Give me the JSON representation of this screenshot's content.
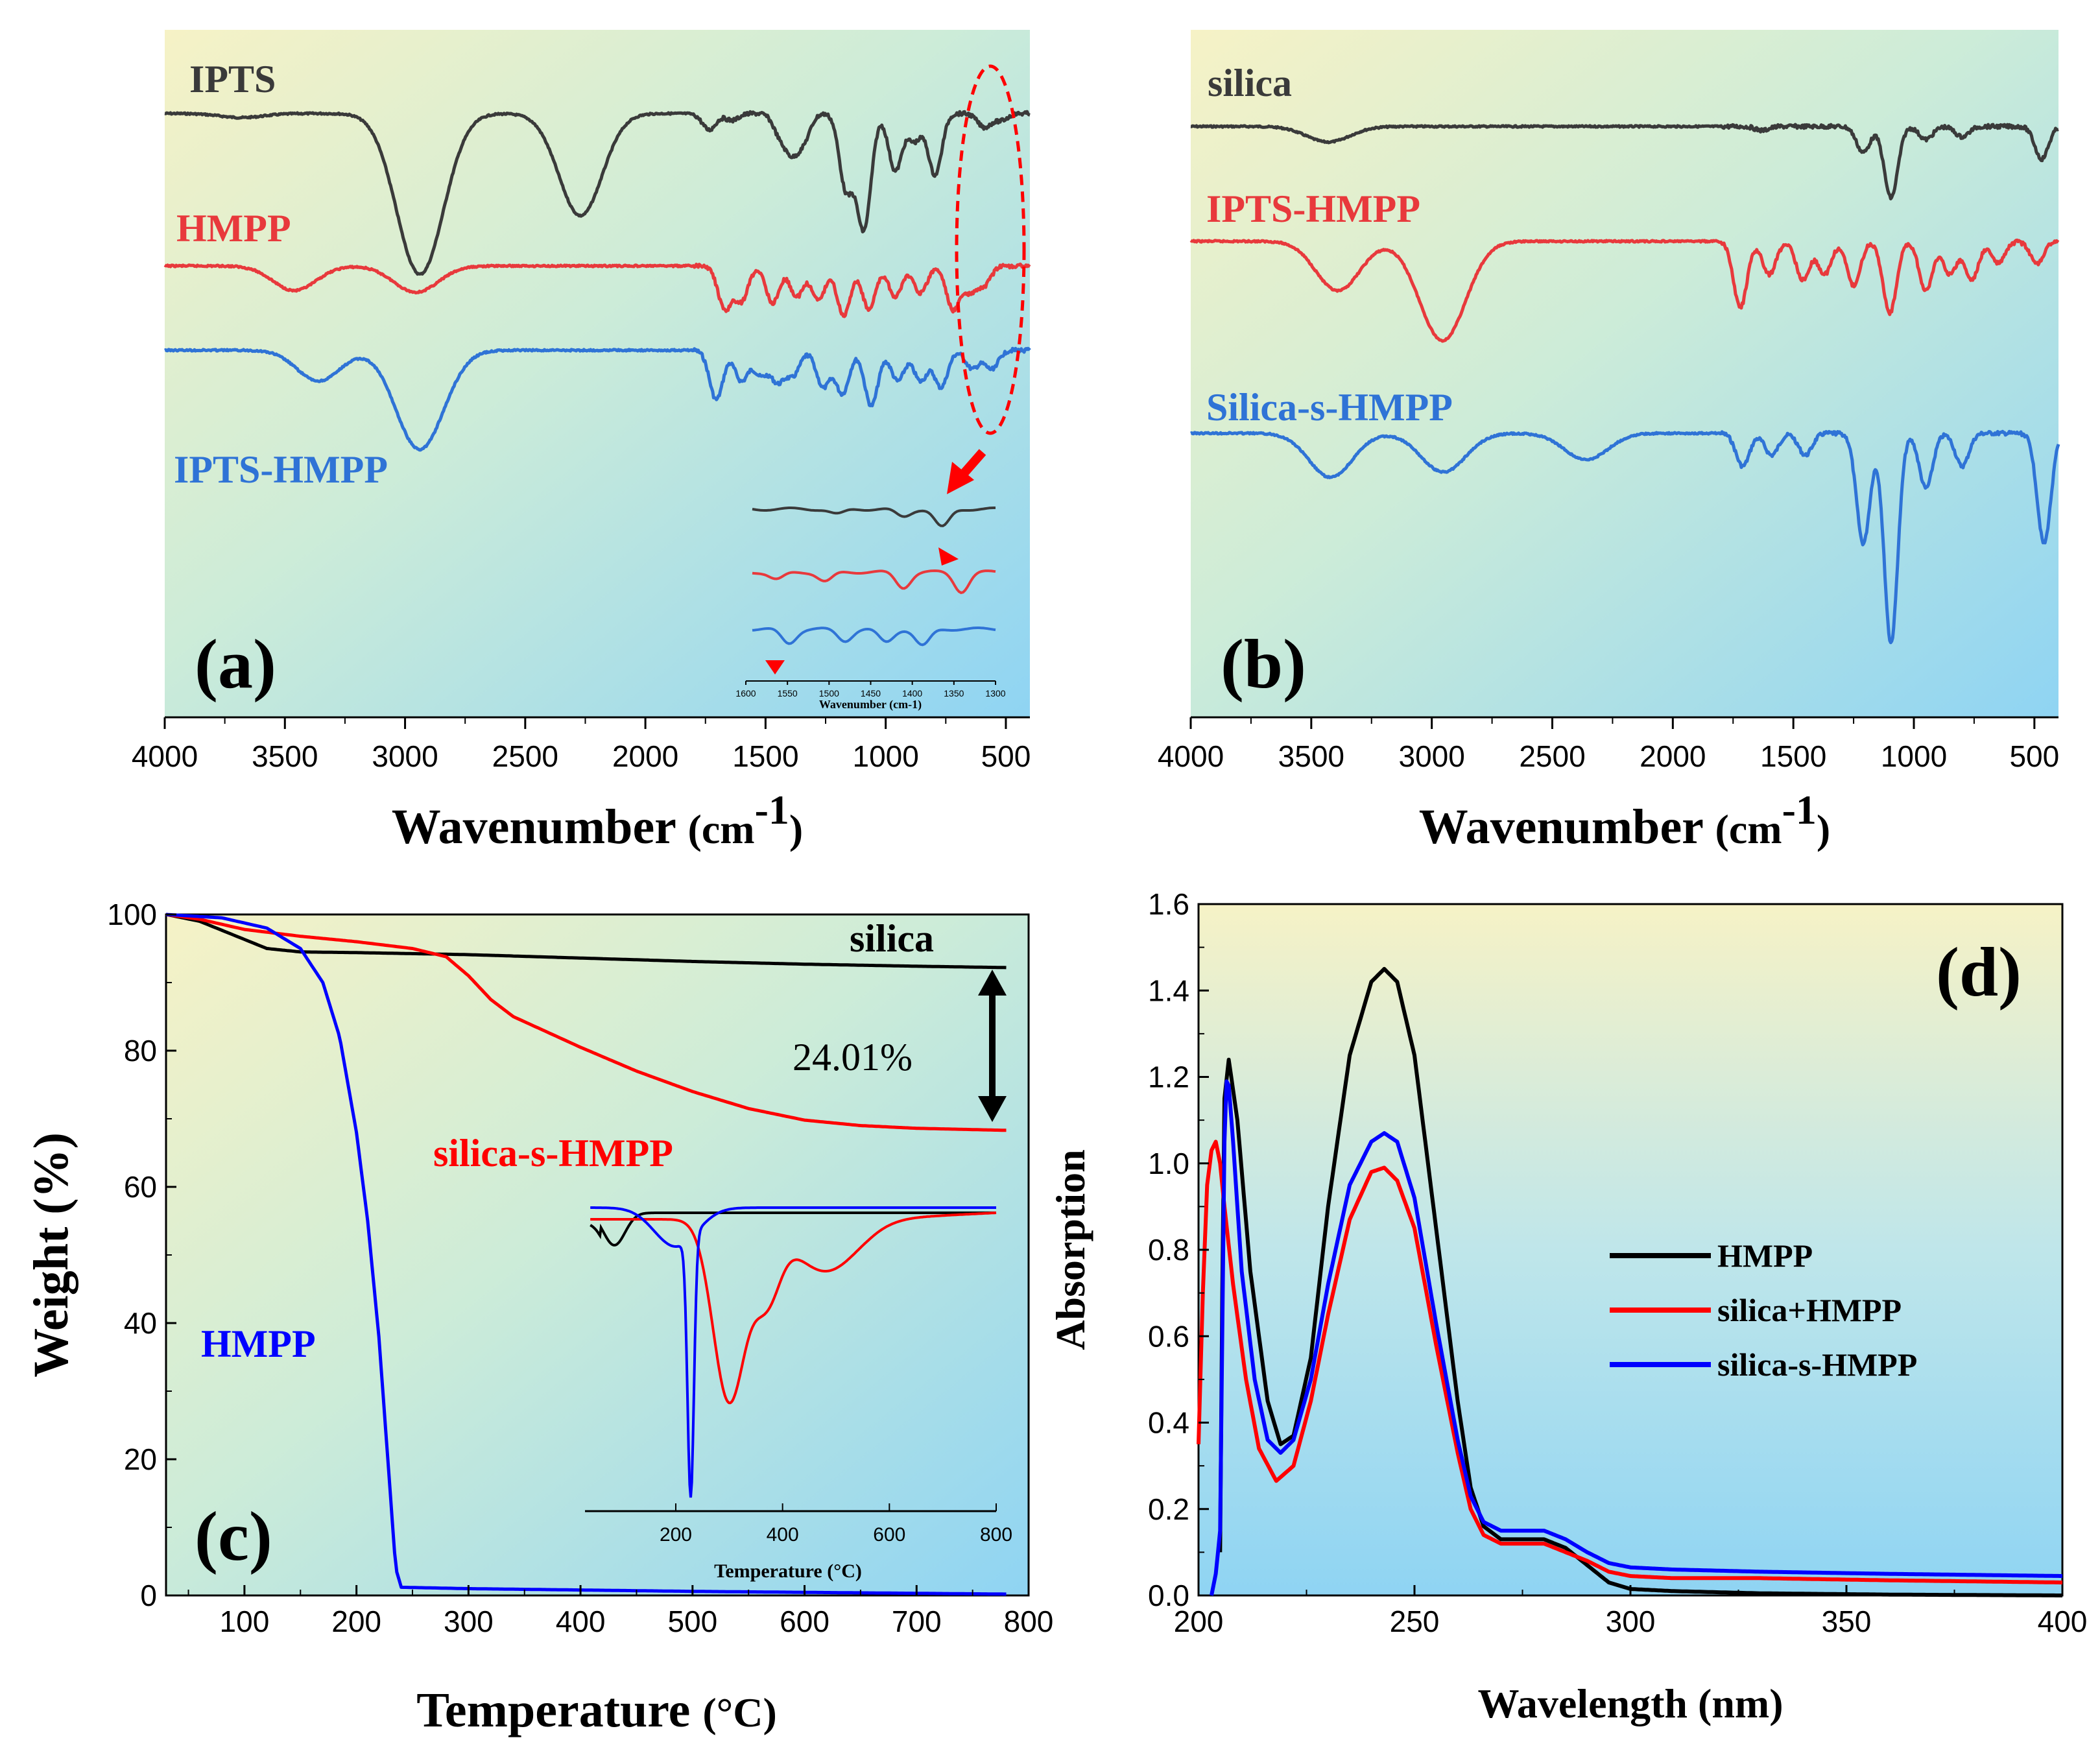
{
  "colors": {
    "black": "#3a3a3a",
    "red": "#e8393c",
    "blue": "#2f73d6",
    "pure_black": "#000000",
    "pure_red": "#ff0000",
    "pure_blue": "#0000ff"
  },
  "chart_data": [
    {
      "id": "a",
      "type": "line",
      "panel_label": "(a)",
      "xlabel": "Wavenumber",
      "xlabel_unit": "(cm",
      "xlabel_sup": "-1",
      "xlabel_close": ")",
      "xlim": [
        4000,
        400
      ],
      "xticks": [
        "4000",
        "3500",
        "3000",
        "2500",
        "2000",
        "1500",
        "1000",
        "500"
      ],
      "xtick_values": [
        4000,
        3500,
        3000,
        2500,
        2000,
        1500,
        1000,
        500
      ],
      "series": [
        {
          "name": "IPTS",
          "color": "black",
          "offset": 0,
          "peaks": [
            [
              3680,
              3
            ],
            [
              2975,
              52
            ],
            [
              2930,
              40
            ],
            [
              2890,
              35
            ],
            [
              2270,
              75
            ],
            [
              1735,
              12
            ],
            [
              1640,
              5
            ],
            [
              1440,
              15
            ],
            [
              1390,
              25
            ],
            [
              1340,
              18
            ],
            [
              1165,
              55
            ],
            [
              1100,
              50
            ],
            [
              1080,
              40
            ],
            [
              960,
              42
            ],
            [
              880,
              20
            ],
            [
              795,
              45
            ],
            [
              590,
              10
            ],
            [
              520,
              5
            ]
          ]
        },
        {
          "name": "HMPP",
          "color": "red",
          "offset": 0,
          "peaks": [
            [
              3460,
              20
            ],
            [
              2975,
              12
            ],
            [
              2930,
              10
            ],
            [
              1670,
              35
            ],
            [
              1600,
              28
            ],
            [
              1470,
              30
            ],
            [
              1370,
              25
            ],
            [
              1280,
              28
            ],
            [
              1175,
              40
            ],
            [
              1070,
              35
            ],
            [
              960,
              25
            ],
            [
              855,
              22
            ],
            [
              720,
              35
            ],
            [
              650,
              20
            ],
            [
              590,
              15
            ]
          ]
        },
        {
          "name": "IPTS-HMPP",
          "color": "blue",
          "offset": 0,
          "peaks": [
            [
              3360,
              25
            ],
            [
              2975,
              35
            ],
            [
              2940,
              28
            ],
            [
              2880,
              25
            ],
            [
              1705,
              40
            ],
            [
              1600,
              25
            ],
            [
              1520,
              20
            ],
            [
              1450,
              25
            ],
            [
              1385,
              20
            ],
            [
              1260,
              30
            ],
            [
              1180,
              35
            ],
            [
              1060,
              45
            ],
            [
              950,
              25
            ],
            [
              855,
              25
            ],
            [
              770,
              30
            ],
            [
              640,
              15
            ],
            [
              560,
              15
            ]
          ]
        }
      ],
      "inset": {
        "xlabel": "Wavenumber (cm-1)",
        "xticks": [
          "1600",
          "1550",
          "1500",
          "1450",
          "1400",
          "1350",
          "1300"
        ]
      }
    },
    {
      "id": "b",
      "type": "line",
      "panel_label": "(b)",
      "xlabel": "Wavenumber",
      "xlabel_unit": "(cm",
      "xlabel_sup": "-1",
      "xlabel_close": ")",
      "xlim": [
        4000,
        400
      ],
      "xticks": [
        "4000",
        "3500",
        "3000",
        "2500",
        "2000",
        "1500",
        "1000",
        "500"
      ],
      "xtick_values": [
        4000,
        3500,
        3000,
        2500,
        2000,
        1500,
        1000,
        500
      ],
      "series": [
        {
          "name": "silica",
          "color": "black",
          "peaks": [
            [
              3430,
              12
            ],
            [
              1630,
              3
            ],
            [
              1210,
              20
            ],
            [
              1095,
              55
            ],
            [
              950,
              10
            ],
            [
              800,
              8
            ],
            [
              470,
              25
            ]
          ]
        },
        {
          "name": "IPTS-HMPP",
          "color": "red",
          "peaks": [
            [
              3390,
              45
            ],
            [
              2980,
              55
            ],
            [
              2920,
              40
            ],
            [
              1720,
              60
            ],
            [
              1600,
              30
            ],
            [
              1460,
              35
            ],
            [
              1370,
              30
            ],
            [
              1250,
              40
            ],
            [
              1100,
              65
            ],
            [
              950,
              45
            ],
            [
              850,
              30
            ],
            [
              760,
              35
            ],
            [
              650,
              20
            ],
            [
              490,
              20
            ]
          ]
        },
        {
          "name": "Silica-s-HMPP",
          "color": "blue",
          "peaks": [
            [
              3420,
              20
            ],
            [
              2970,
              10
            ],
            [
              2930,
              8
            ],
            [
              2360,
              12
            ],
            [
              1710,
              15
            ],
            [
              1590,
              10
            ],
            [
              1450,
              10
            ],
            [
              1210,
              50
            ],
            [
              1095,
              95
            ],
            [
              950,
              25
            ],
            [
              800,
              15
            ],
            [
              460,
              50
            ]
          ]
        }
      ]
    },
    {
      "id": "c",
      "type": "line",
      "panel_label": "(c)",
      "xlabel": "Temperature",
      "xlabel_unit": "(°C)",
      "ylabel": "Weight (%)",
      "xlim": [
        30,
        800
      ],
      "ylim": [
        0,
        100
      ],
      "xticks": [
        "100",
        "200",
        "300",
        "400",
        "500",
        "600",
        "700",
        "800"
      ],
      "xtick_values": [
        100,
        200,
        300,
        400,
        500,
        600,
        700,
        800
      ],
      "yticks": [
        "0",
        "20",
        "40",
        "60",
        "80",
        "100"
      ],
      "ytick_values": [
        0,
        20,
        40,
        60,
        80,
        100
      ],
      "series": [
        {
          "name": "silica",
          "color": "pure_black",
          "x": [
            30,
            60,
            90,
            120,
            150,
            200,
            300,
            400,
            500,
            600,
            700,
            780
          ],
          "y": [
            100,
            99.0,
            97.0,
            95.0,
            94.5,
            94.4,
            94.1,
            93.6,
            93.1,
            92.7,
            92.4,
            92.2
          ]
        },
        {
          "name": "silica-s-HMPP",
          "color": "pure_red",
          "x": [
            30,
            60,
            100,
            150,
            200,
            250,
            280,
            300,
            320,
            340,
            360,
            400,
            450,
            500,
            550,
            600,
            650,
            700,
            780
          ],
          "y": [
            100,
            99.3,
            97.8,
            96.8,
            96.0,
            95.0,
            93.8,
            91.0,
            87.5,
            85.0,
            83.5,
            80.5,
            77.0,
            74.0,
            71.5,
            69.8,
            69.0,
            68.6,
            68.3
          ]
        },
        {
          "name": "HMPP",
          "color": "pure_blue",
          "x": [
            30,
            80,
            120,
            150,
            170,
            185,
            200,
            210,
            220,
            228,
            235,
            240,
            300,
            500,
            780
          ],
          "y": [
            100,
            99.5,
            98.0,
            95.0,
            90.0,
            82.0,
            68.0,
            55.0,
            38.0,
            20.0,
            4.0,
            1.2,
            1.0,
            0.6,
            0.2
          ]
        }
      ],
      "annotations": {
        "mass_loss": "24.01%"
      },
      "inset": {
        "xlabel": "Temperature (°C)",
        "xticks": [
          "200",
          "400",
          "600",
          "800"
        ],
        "xtick_values": [
          200,
          400,
          600,
          800
        ],
        "xlim": [
          30,
          800
        ]
      }
    },
    {
      "id": "d",
      "type": "line",
      "panel_label": "(d)",
      "xlabel": "Wavelength (nm)",
      "ylabel": "Absorption",
      "xlim": [
        200,
        400
      ],
      "ylim": [
        0,
        1.6
      ],
      "xticks": [
        "200",
        "250",
        "300",
        "350",
        "400"
      ],
      "xtick_values": [
        200,
        250,
        300,
        350,
        400
      ],
      "yticks": [
        "0.0",
        "0.2",
        "0.4",
        "0.6",
        "0.8",
        "1.0",
        "1.2",
        "1.4",
        "1.6"
      ],
      "ytick_values": [
        0,
        0.2,
        0.4,
        0.6,
        0.8,
        1.0,
        1.2,
        1.4,
        1.6
      ],
      "legend_position": "center-right",
      "series": [
        {
          "name": "HMPP",
          "color": "pure_black",
          "x": [
            205,
            205.5,
            206,
            207,
            209,
            212,
            216,
            219,
            222,
            226,
            230,
            235,
            240,
            243,
            246,
            250,
            255,
            260,
            263,
            266,
            270,
            275,
            280,
            285,
            290,
            295,
            300,
            310,
            330,
            360,
            400
          ],
          "y": [
            0.1,
            0.7,
            1.15,
            1.24,
            1.1,
            0.75,
            0.45,
            0.35,
            0.37,
            0.55,
            0.9,
            1.25,
            1.42,
            1.45,
            1.42,
            1.25,
            0.85,
            0.45,
            0.25,
            0.16,
            0.13,
            0.13,
            0.13,
            0.11,
            0.07,
            0.03,
            0.015,
            0.01,
            0.005,
            0.002,
            0.0
          ]
        },
        {
          "name": "silica+HMPP",
          "color": "pure_red",
          "x": [
            200,
            201,
            202,
            203,
            204,
            205,
            206,
            208,
            211,
            214,
            218,
            222,
            226,
            230,
            235,
            240,
            243,
            246,
            250,
            255,
            260,
            263,
            266,
            270,
            275,
            280,
            285,
            290,
            295,
            300,
            310,
            330,
            360,
            400
          ],
          "y": [
            0.35,
            0.7,
            0.95,
            1.03,
            1.05,
            1.0,
            0.9,
            0.72,
            0.5,
            0.34,
            0.265,
            0.3,
            0.45,
            0.65,
            0.87,
            0.98,
            0.99,
            0.96,
            0.85,
            0.58,
            0.33,
            0.2,
            0.14,
            0.12,
            0.12,
            0.12,
            0.1,
            0.08,
            0.055,
            0.045,
            0.04,
            0.04,
            0.035,
            0.03
          ]
        },
        {
          "name": "silica-s-HMPP",
          "color": "pure_blue",
          "x": [
            203,
            204,
            205,
            205.5,
            206,
            206.5,
            207,
            208,
            210,
            213,
            216,
            219,
            222,
            226,
            230,
            235,
            240,
            243,
            246,
            250,
            255,
            260,
            263,
            266,
            270,
            275,
            280,
            285,
            290,
            295,
            300,
            310,
            330,
            360,
            400
          ],
          "y": [
            0.0,
            0.05,
            0.15,
            0.6,
            1.05,
            1.19,
            1.18,
            1.05,
            0.75,
            0.5,
            0.36,
            0.33,
            0.36,
            0.5,
            0.72,
            0.95,
            1.05,
            1.07,
            1.05,
            0.92,
            0.63,
            0.36,
            0.23,
            0.17,
            0.15,
            0.15,
            0.15,
            0.13,
            0.1,
            0.075,
            0.065,
            0.06,
            0.055,
            0.05,
            0.045
          ]
        }
      ]
    }
  ]
}
